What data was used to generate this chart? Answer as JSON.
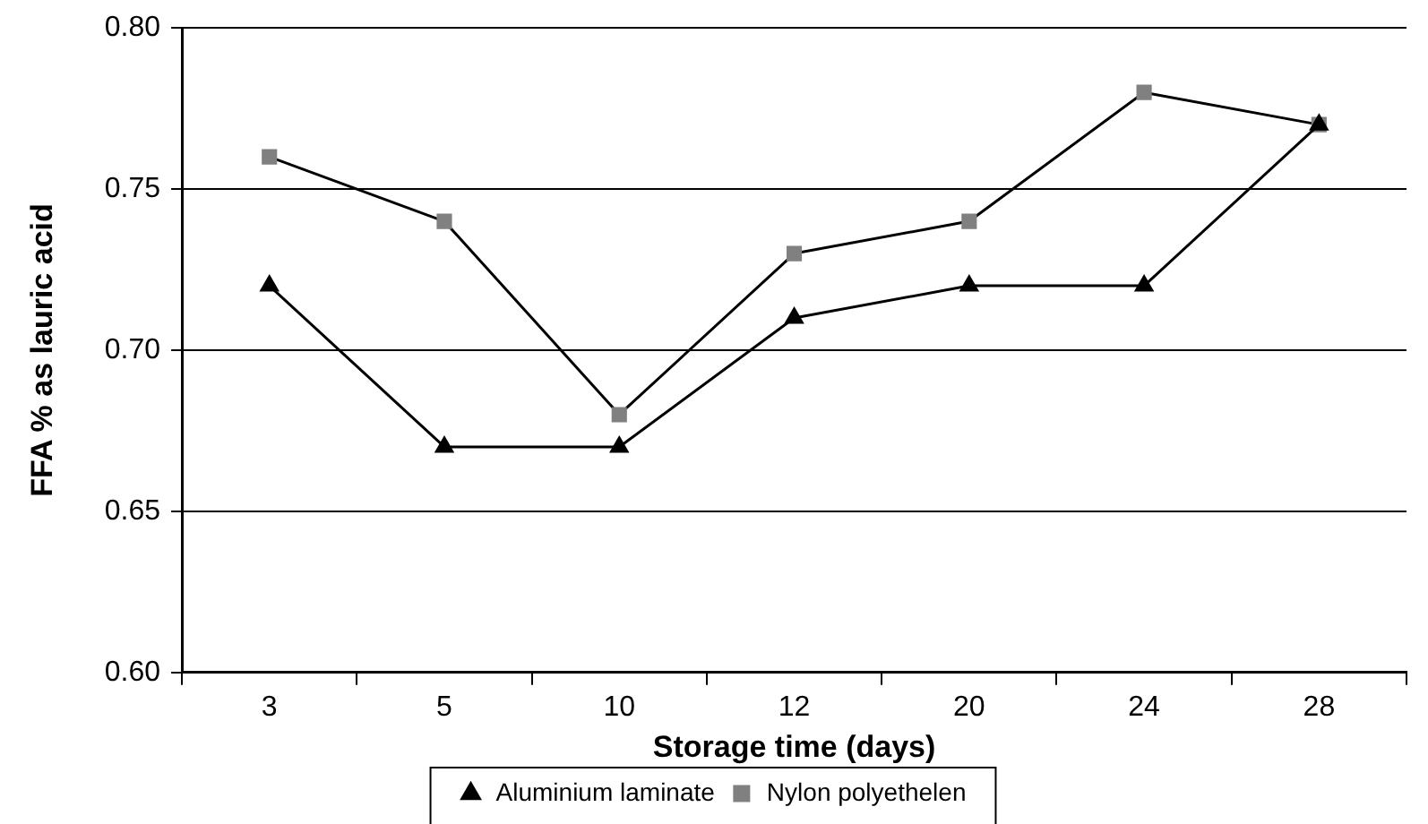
{
  "chart_data": {
    "type": "line",
    "xlabel": "Storage time (days)",
    "ylabel": "FFA % as lauric acid",
    "categories": [
      "3",
      "5",
      "10",
      "12",
      "20",
      "24",
      "28"
    ],
    "series": [
      {
        "name": "Aluminium laminate",
        "color": "#000000",
        "marker": "triangle",
        "values": [
          0.72,
          0.67,
          0.67,
          0.71,
          0.72,
          0.72,
          0.77
        ]
      },
      {
        "name": "Nylon polyethelen",
        "color": "#808080",
        "marker": "square",
        "values": [
          0.76,
          0.74,
          0.68,
          0.73,
          0.74,
          0.78,
          0.77
        ]
      }
    ],
    "ylim": [
      0.6,
      0.8
    ],
    "yticks": [
      {
        "value": 0.6,
        "label": "0.60"
      },
      0.65,
      {
        "value": 0.7,
        "label": "0.70"
      },
      0.75,
      {
        "value": 0.8,
        "label": "0.80"
      }
    ],
    "grid": "y",
    "legend": "bottom"
  }
}
